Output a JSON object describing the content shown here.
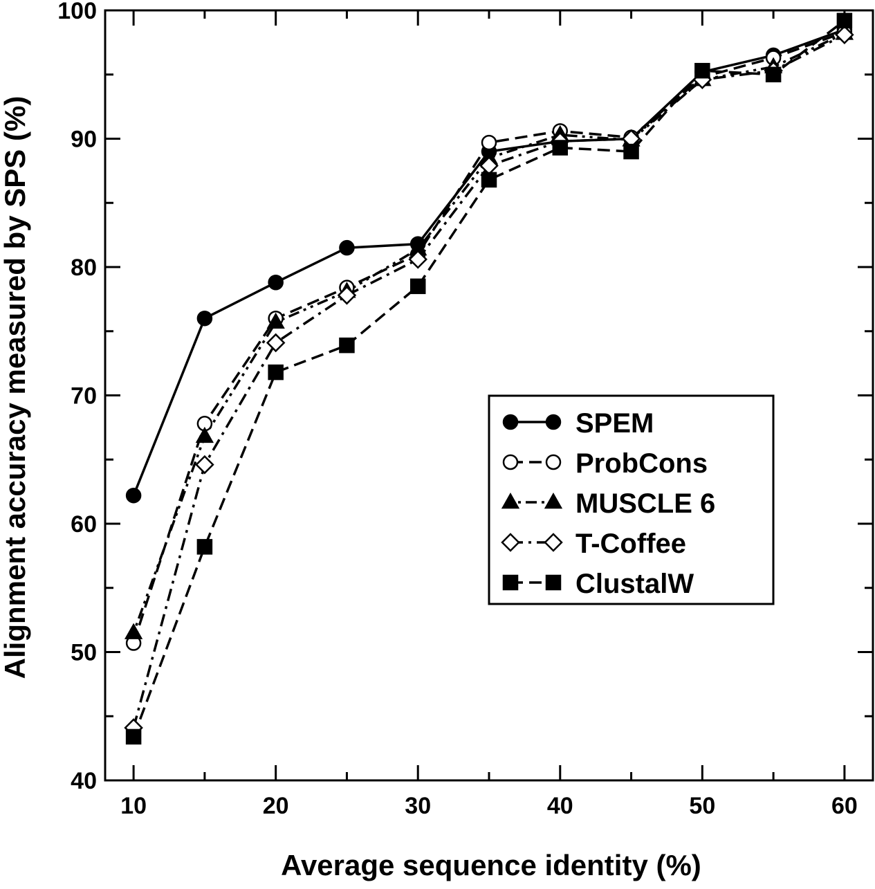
{
  "chart_data": {
    "type": "line",
    "x_label": "Average sequence identity (%)",
    "y_label": "Alignment accuracy measured by SPS (%)",
    "x": [
      10,
      15,
      20,
      25,
      30,
      35,
      40,
      45,
      50,
      55,
      60
    ],
    "series": [
      {
        "name": "SPEM",
        "color": "#000000",
        "marker": "circle",
        "filled": true,
        "dash": "solid",
        "values": [
          62.2,
          76,
          78.8,
          81.5,
          81.8,
          89,
          89.8,
          90,
          95.2,
          96.5,
          98.5
        ]
      },
      {
        "name": "ProbCons",
        "color": "#000000",
        "marker": "circle",
        "filled": false,
        "dash": "dashed",
        "values": [
          50.7,
          67.8,
          76,
          78.4,
          81,
          89.7,
          90.6,
          90.1,
          94.8,
          96.3,
          98.3
        ]
      },
      {
        "name": "MUSCLE 6",
        "color": "#000000",
        "marker": "triangle",
        "filled": true,
        "dash": "dashdotdot",
        "values": [
          51.5,
          66.8,
          75.7,
          78.1,
          81.4,
          88.5,
          90.3,
          89.9,
          94.6,
          95.6,
          98.2
        ]
      },
      {
        "name": "T-Coffee",
        "color": "#000000",
        "marker": "diamond",
        "filled": false,
        "dash": "dashdot",
        "values": [
          44.1,
          64.6,
          74.1,
          77.8,
          80.6,
          87.9,
          89.8,
          90,
          94.6,
          95.3,
          98.1
        ]
      },
      {
        "name": "ClustalW",
        "color": "#000000",
        "marker": "square",
        "filled": true,
        "dash": "dashed",
        "values": [
          43.4,
          58.2,
          71.8,
          73.9,
          78.5,
          86.8,
          89.3,
          89.0,
          95.3,
          95.0,
          99.2
        ]
      }
    ],
    "xlim": [
      8,
      62
    ],
    "ylim": [
      40,
      100
    ],
    "xticks": [
      10,
      20,
      30,
      40,
      50,
      60
    ],
    "yticks": [
      40,
      50,
      60,
      70,
      80,
      90,
      100
    ],
    "xminorticks": [
      15,
      25,
      35,
      45,
      55
    ],
    "yminorticks": [
      45,
      55,
      65,
      75,
      85,
      95
    ],
    "legend": "right",
    "grid": false
  }
}
